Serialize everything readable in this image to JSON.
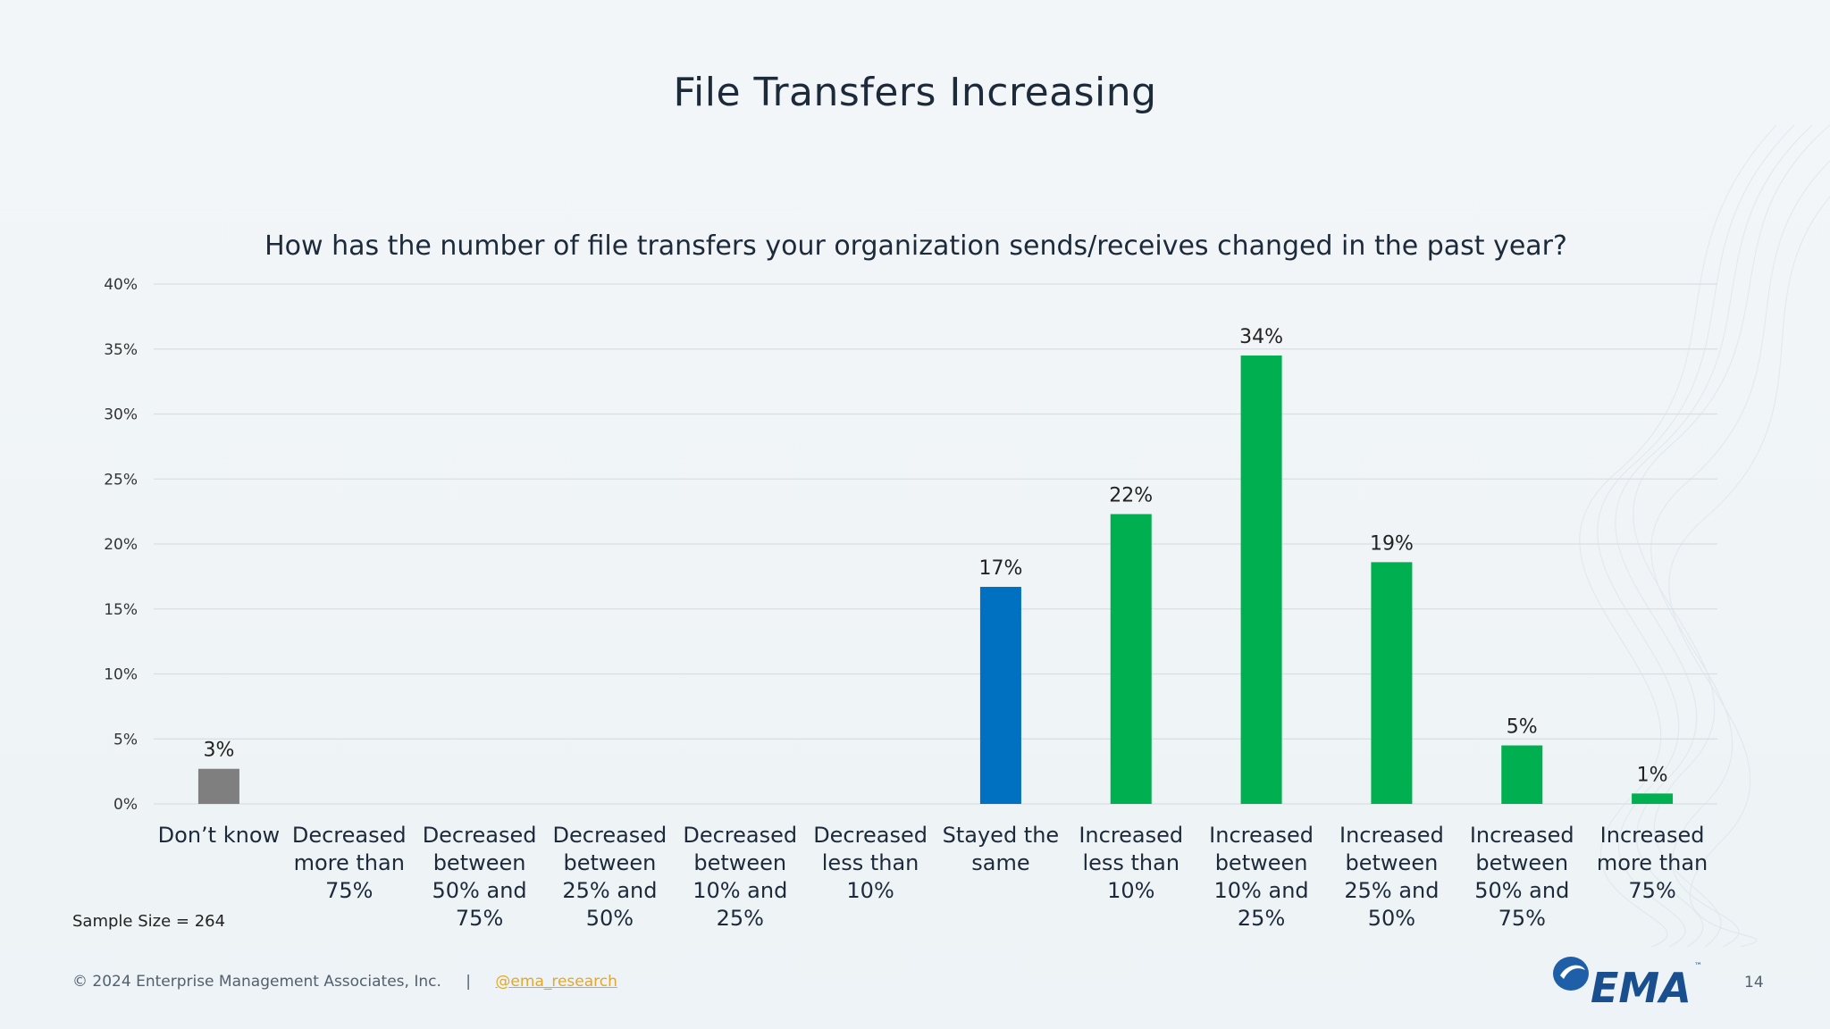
{
  "slide": {
    "title": "File Transfers Increasing",
    "sample_size": "Sample Size = 264",
    "page_number": "14"
  },
  "footer": {
    "copyright": "© 2024 Enterprise Management Associates, Inc.",
    "separator": "|",
    "handle": "@ema_research"
  },
  "logo": {
    "text": "EMA",
    "tm": "™"
  },
  "colors": {
    "gray": "#7f7f7f",
    "blue": "#0070c0",
    "green": "#00b050",
    "grid": "#d9dee2",
    "text": "#1c2a3a"
  },
  "chart_data": {
    "type": "bar",
    "title": "How has the number of file transfers your organization sends/receives changed in the past year?",
    "categories": [
      "Don’t know",
      "Decreased more than 75%",
      "Decreased between 50% and 75%",
      "Decreased between 25% and 50%",
      "Decreased between 10% and 25%",
      "Decreased less than 10%",
      "Stayed the same",
      "Increased less than 10%",
      "Increased between 10% and 25%",
      "Increased between 25% and 50%",
      "Increased between 50% and 75%",
      "Increased more than 75%"
    ],
    "values": [
      2.7,
      0,
      0,
      0,
      0,
      0,
      16.7,
      22.3,
      34.5,
      18.6,
      4.5,
      0.8
    ],
    "data_labels": [
      "3%",
      "",
      "",
      "",
      "",
      "",
      "17%",
      "22%",
      "34%",
      "19%",
      "5%",
      "1%"
    ],
    "bar_colors": [
      "gray",
      "",
      "",
      "",
      "",
      "",
      "blue",
      "green",
      "green",
      "green",
      "green",
      "green"
    ],
    "ylim": [
      0,
      40
    ],
    "yticks": [
      "0%",
      "5%",
      "10%",
      "15%",
      "20%",
      "25%",
      "30%",
      "35%",
      "40%"
    ],
    "grid": true,
    "legend": "none"
  }
}
